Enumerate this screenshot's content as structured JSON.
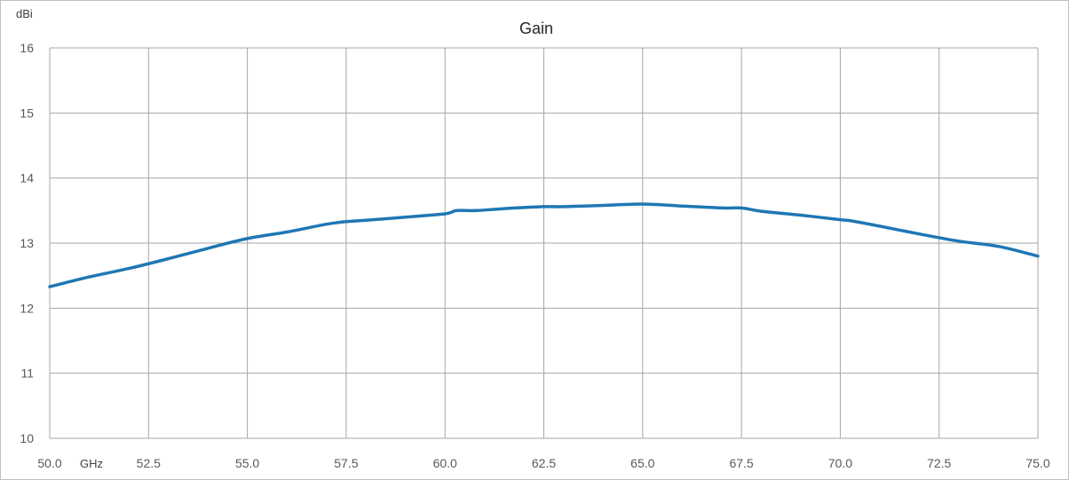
{
  "chart_data": {
    "type": "line",
    "title": "Gain",
    "ylabel": "dBi",
    "xlabel": "GHz",
    "xlim": [
      50,
      75
    ],
    "ylim": [
      10,
      16
    ],
    "x_ticks": [
      "50.0",
      "52.5",
      "55.0",
      "57.5",
      "60.0",
      "62.5",
      "65.0",
      "67.5",
      "70.0",
      "72.5",
      "75.0"
    ],
    "y_ticks": [
      "10",
      "11",
      "12",
      "13",
      "14",
      "15",
      "16"
    ],
    "grid": true,
    "series": [
      {
        "color": "#1f77b4",
        "x": [
          50.0,
          51.0,
          52.0,
          53.0,
          54.0,
          55.0,
          56.0,
          57.0,
          57.5,
          58.0,
          59.0,
          60.0,
          60.3,
          60.8,
          61.5,
          62.5,
          63.0,
          64.0,
          65.0,
          66.0,
          67.0,
          67.5,
          68.0,
          69.0,
          70.0,
          70.3,
          71.0,
          72.0,
          73.0,
          74.0,
          75.0
        ],
        "y": [
          12.33,
          12.48,
          12.61,
          12.76,
          12.92,
          13.07,
          13.17,
          13.29,
          13.33,
          13.35,
          13.4,
          13.45,
          13.5,
          13.5,
          13.53,
          13.56,
          13.56,
          13.58,
          13.6,
          13.57,
          13.54,
          13.54,
          13.49,
          13.43,
          13.36,
          13.34,
          13.26,
          13.14,
          13.03,
          12.95,
          12.8
        ]
      }
    ]
  }
}
